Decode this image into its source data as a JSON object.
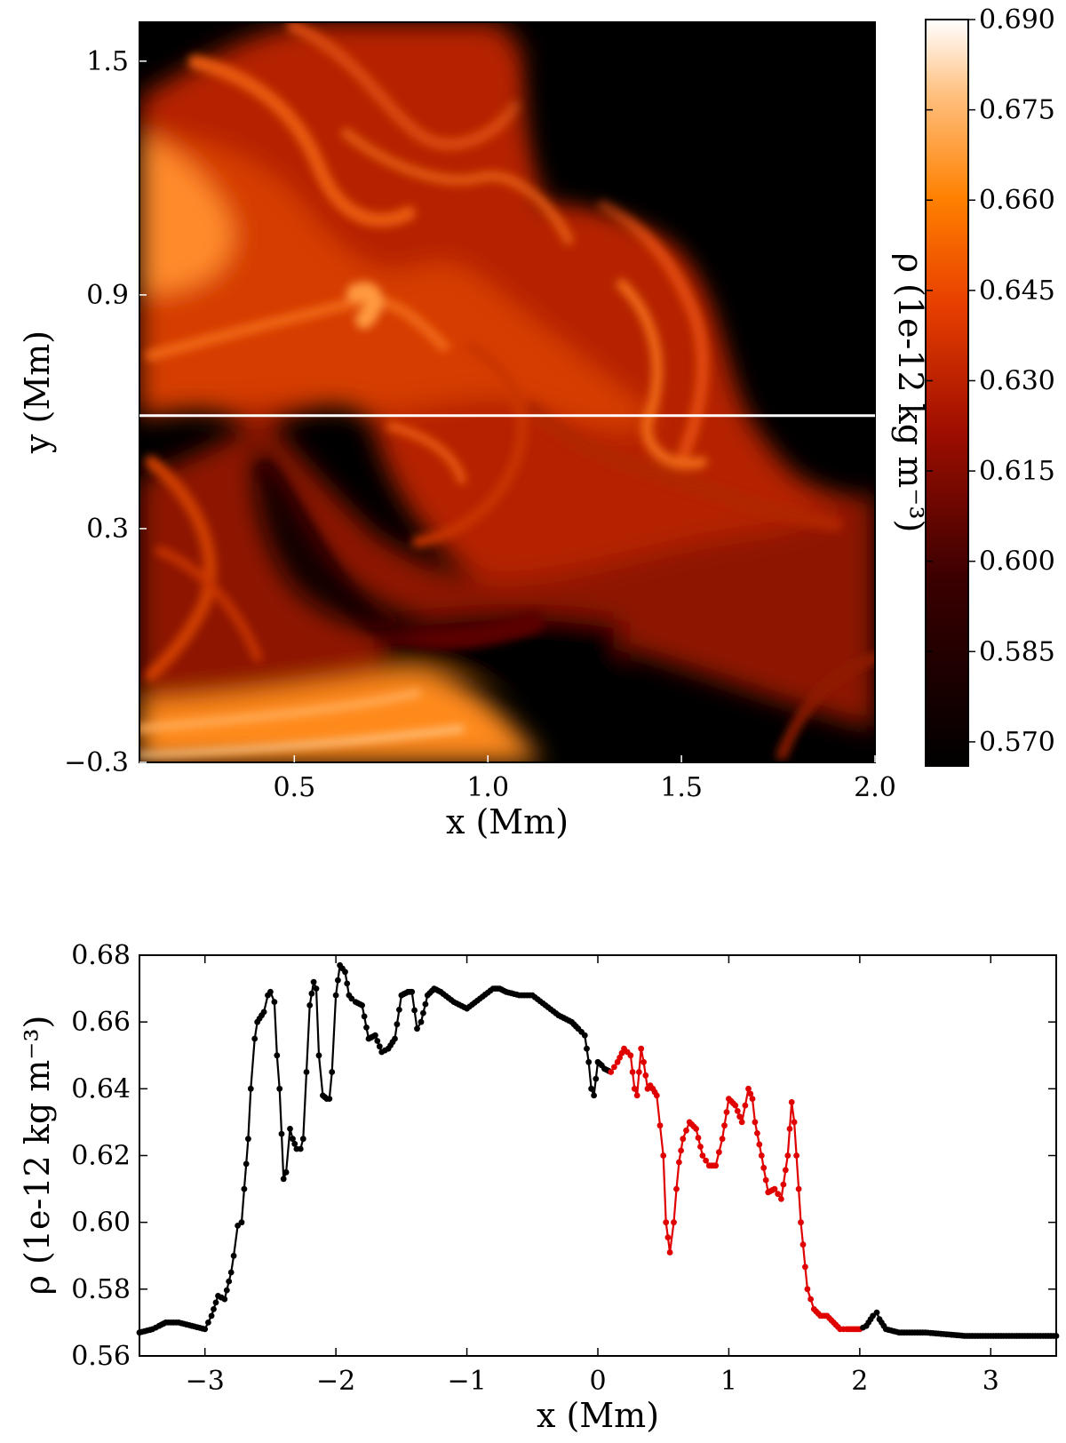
{
  "chart_data": [
    {
      "type": "heatmap",
      "xlabel": "x (Mm)",
      "ylabel": "y (Mm)",
      "xlim": [
        0.1,
        2.0
      ],
      "ylim": [
        -0.3,
        1.6
      ],
      "x_ticks": [
        "0.5",
        "1.0",
        "1.5",
        "2.0"
      ],
      "y_ticks": [
        "−0.3",
        "0.3",
        "0.9",
        "1.5"
      ],
      "colorbar": {
        "label": "ρ (1e-12 kg m⁻³)",
        "range": [
          0.566,
          0.69
        ],
        "ticks": [
          "0.570",
          "0.585",
          "0.600",
          "0.615",
          "0.630",
          "0.645",
          "0.660",
          "0.675",
          "0.690"
        ],
        "colormap": "gist_heat"
      },
      "cut_line_y": 0.59,
      "cut_line_color": "#ffffff"
    },
    {
      "type": "line",
      "xlabel": "x (Mm)",
      "ylabel": "ρ (1e-12 kg m⁻³)",
      "xlim": [
        -3.5,
        3.5
      ],
      "ylim": [
        0.56,
        0.68
      ],
      "x_ticks": [
        "−3",
        "−2",
        "−1",
        "0",
        "1",
        "2",
        "3"
      ],
      "y_ticks": [
        "0.56",
        "0.58",
        "0.60",
        "0.62",
        "0.64",
        "0.66",
        "0.68"
      ],
      "highlight_range": [
        0.1,
        2.0
      ],
      "colors": {
        "main": "#000000",
        "highlight": "#e00000"
      },
      "series": [
        {
          "x": [
            -3.5,
            -3.4,
            -3.35,
            -3.3,
            -3.2,
            -3.1,
            -3.0,
            -2.95,
            -2.9,
            -2.85,
            -2.8,
            -2.78,
            -2.75,
            -2.72,
            -2.7,
            -2.67,
            -2.65,
            -2.62,
            -2.6,
            -2.55,
            -2.52,
            -2.5,
            -2.47,
            -2.45,
            -2.43,
            -2.4,
            -2.38,
            -2.35,
            -2.33,
            -2.3,
            -2.27,
            -2.25,
            -2.2,
            -2.17,
            -2.15,
            -2.13,
            -2.1,
            -2.07,
            -2.05,
            -2.03,
            -2.0,
            -1.97,
            -1.93,
            -1.9,
            -1.88,
            -1.85,
            -1.8,
            -1.75,
            -1.7,
            -1.65,
            -1.6,
            -1.55,
            -1.5,
            -1.45,
            -1.42,
            -1.38,
            -1.35,
            -1.3,
            -1.25,
            -1.2,
            -1.1,
            -1.0,
            -0.9,
            -0.8,
            -0.75,
            -0.7,
            -0.6,
            -0.5,
            -0.4,
            -0.3,
            -0.2,
            -0.15,
            -0.1,
            -0.07,
            -0.05,
            -0.03,
            0.0,
            0.03,
            0.05,
            0.1,
            0.15,
            0.2,
            0.25,
            0.28,
            0.3,
            0.33,
            0.35,
            0.38,
            0.4,
            0.42,
            0.45,
            0.5,
            0.52,
            0.55,
            0.58,
            0.6,
            0.62,
            0.65,
            0.7,
            0.75,
            0.8,
            0.85,
            0.9,
            0.95,
            1.0,
            1.05,
            1.1,
            1.15,
            1.18,
            1.2,
            1.25,
            1.3,
            1.35,
            1.4,
            1.45,
            1.48,
            1.5,
            1.55,
            1.6,
            1.65,
            1.7,
            1.75,
            1.8,
            1.85,
            1.9,
            1.95,
            2.0,
            2.05,
            2.1,
            2.13,
            2.15,
            2.2,
            2.3,
            2.5,
            2.8,
            3.0,
            3.3,
            3.5
          ],
          "y": [
            0.567,
            0.568,
            0.569,
            0.57,
            0.57,
            0.569,
            0.568,
            0.572,
            0.578,
            0.577,
            0.585,
            0.59,
            0.599,
            0.6,
            0.61,
            0.625,
            0.64,
            0.655,
            0.66,
            0.663,
            0.668,
            0.669,
            0.666,
            0.65,
            0.64,
            0.613,
            0.615,
            0.628,
            0.625,
            0.622,
            0.622,
            0.625,
            0.665,
            0.672,
            0.67,
            0.65,
            0.638,
            0.637,
            0.637,
            0.645,
            0.668,
            0.677,
            0.675,
            0.668,
            0.667,
            0.666,
            0.665,
            0.655,
            0.656,
            0.651,
            0.652,
            0.655,
            0.668,
            0.669,
            0.669,
            0.658,
            0.66,
            0.668,
            0.67,
            0.669,
            0.666,
            0.664,
            0.667,
            0.67,
            0.67,
            0.669,
            0.668,
            0.668,
            0.665,
            0.662,
            0.66,
            0.658,
            0.656,
            0.648,
            0.64,
            0.638,
            0.648,
            0.647,
            0.646,
            0.645,
            0.648,
            0.652,
            0.65,
            0.64,
            0.638,
            0.652,
            0.648,
            0.64,
            0.641,
            0.64,
            0.638,
            0.62,
            0.6,
            0.591,
            0.6,
            0.61,
            0.618,
            0.625,
            0.63,
            0.628,
            0.62,
            0.617,
            0.617,
            0.625,
            0.637,
            0.635,
            0.63,
            0.64,
            0.637,
            0.63,
            0.62,
            0.609,
            0.61,
            0.607,
            0.62,
            0.636,
            0.63,
            0.6,
            0.58,
            0.574,
            0.572,
            0.572,
            0.57,
            0.568,
            0.568,
            0.568,
            0.568,
            0.569,
            0.572,
            0.573,
            0.571,
            0.568,
            0.567,
            0.567,
            0.566,
            0.566,
            0.566,
            0.566
          ]
        }
      ]
    }
  ]
}
